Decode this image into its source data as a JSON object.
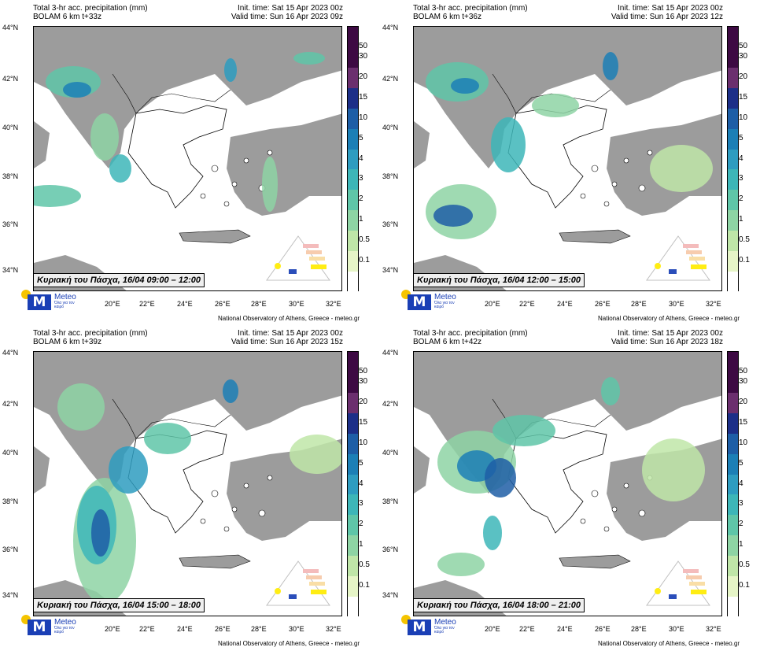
{
  "common": {
    "title": "Total 3-hr acc. precipitation (mm)",
    "init_time": "Init. time: Sat 15 Apr 2023 00z",
    "credit": "National Observatory of Athens, Greece - meteo.gr",
    "logo_name": "Meteo",
    "logo_slogan": "Όλα για τον καιρό",
    "lat_labels": [
      "44°N",
      "42°N",
      "40°N",
      "38°N",
      "36°N",
      "34°N"
    ],
    "lon_labels": [
      "20°E",
      "22°E",
      "24°E",
      "26°E",
      "28°E",
      "30°E",
      "32°E"
    ],
    "colorbar": [
      {
        "label": "50",
        "color": "#3d0a43"
      },
      {
        "label": "30",
        "color": "#6b2f6e"
      },
      {
        "label": "20",
        "color": "#1d2f88"
      },
      {
        "label": "15",
        "color": "#1e5ea6"
      },
      {
        "label": "10",
        "color": "#1c7fb6"
      },
      {
        "label": "5",
        "color": "#2e9cc0"
      },
      {
        "label": "4",
        "color": "#3db6b8"
      },
      {
        "label": "3",
        "color": "#5fc6a8"
      },
      {
        "label": "2",
        "color": "#8ed4a4"
      },
      {
        "label": "1",
        "color": "#bfe6a8"
      },
      {
        "label": "0.5",
        "color": "#e6f5c7"
      },
      {
        "label": "0.1",
        "color": "#ffffff"
      }
    ],
    "colors": {
      "land": "#9c9c9c",
      "sea": "#ffffff",
      "greece": "#ffffff"
    }
  },
  "panels": [
    {
      "model": "BOLAM 6 km t+33z",
      "valid": "Valid time: Sun 16 Apr 2023 09z",
      "caption": "Κυριακή του Πάσχα, 16/04 09:00 – 12:00"
    },
    {
      "model": "BOLAM 6 km t+36z",
      "valid": "Valid time: Sun 16 Apr 2023 12z",
      "caption": "Κυριακή του Πάσχα, 16/04 12:00 – 15:00"
    },
    {
      "model": "BOLAM 6 km t+39z",
      "valid": "Valid time: Sun 16 Apr 2023 15z",
      "caption": "Κυριακή του Πάσχα, 16/04 15:00 – 18:00"
    },
    {
      "model": "BOLAM 6 km t+42z",
      "valid": "Valid time: Sun 16 Apr 2023 18z",
      "caption": "Κυριακή του Πάσχα, 16/04 18:00 – 21:00"
    }
  ]
}
